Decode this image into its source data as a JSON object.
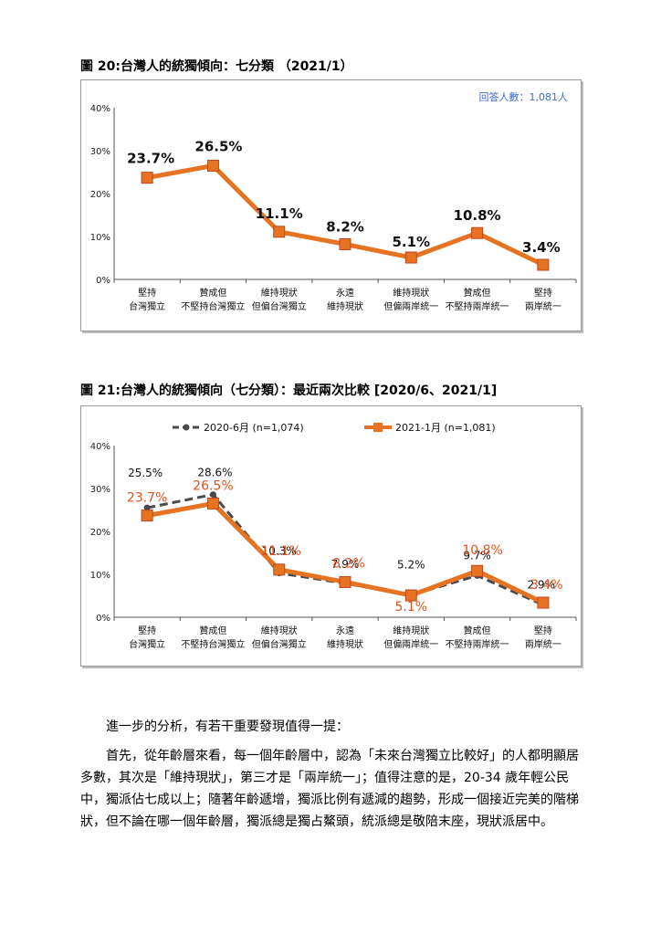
{
  "categories": [
    [
      "堅持",
      "台灣獨立"
    ],
    [
      "贊成但",
      "不堅持台灣獨立"
    ],
    [
      "維持現狀",
      "但偏台灣獨立"
    ],
    [
      "永遠",
      "維持現狀"
    ],
    [
      "維持現狀",
      "但偏兩岸統一"
    ],
    [
      "贊成但",
      "不堅持兩岸統一"
    ],
    [
      "堅持",
      "兩岸統一"
    ]
  ],
  "figure20": {
    "title": "圖 20:台灣人的統獨傾向：七分類 （2021/1）",
    "respondents": "回答人數：1,081人",
    "chart_data": {
      "type": "line",
      "y_ticks": [
        "0%",
        "10%",
        "20%",
        "30%",
        "40%"
      ],
      "ylim": [
        0,
        40
      ],
      "series": [
        {
          "values": [
            23.7,
            26.5,
            11.1,
            8.2,
            5.1,
            10.8,
            3.4
          ],
          "color": "#e57322",
          "labels": [
            "23.7%",
            "26.5%",
            "11.1%",
            "8.2%",
            "5.1%",
            "10.8%",
            "3.4%"
          ]
        }
      ]
    }
  },
  "figure21": {
    "title": "圖 21:台灣人的統獨傾向（七分類）：最近兩次比較 [2020/6、2021/1]",
    "chart_data": {
      "type": "line",
      "y_ticks": [
        "0%",
        "10%",
        "20%",
        "30%",
        "40%"
      ],
      "ylim": [
        0,
        40
      ],
      "series": [
        {
          "name": "2020-6月 (n=1,074)",
          "color": "#4a4a4a",
          "dashed": true,
          "values": [
            25.5,
            28.6,
            10.3,
            7.9,
            5.2,
            9.7,
            2.9
          ],
          "labels": [
            "25.5%",
            "28.6%",
            "10.3%",
            "7.9%",
            "5.2%",
            "9.7%",
            "2.9%"
          ]
        },
        {
          "name": "2021-1月 (n=1,081)",
          "color": "#e57322",
          "dashed": false,
          "values": [
            23.7,
            26.5,
            11.1,
            8.2,
            5.1,
            10.8,
            3.4
          ],
          "labels": [
            "23.7%",
            "26.5%",
            "11.1%",
            "8.2%",
            "5.1%",
            "10.8%",
            "3.4%"
          ]
        }
      ]
    }
  },
  "text": {
    "p1": "進一步的分析，有若干重要發現值得一提：",
    "p2": "首先，從年齡層來看，每一個年齡層中，認為「未來台灣獨立比較好」的人都明顯居多數，其次是「維持現狀」，第三才是「兩岸統一」；值得注意的是，20-34 歲年輕公民中，獨派佔七成以上；隨著年齡遞增，獨派比例有遞減的趨勢，形成一個接近完美的階梯狀，但不論在哪一個年齡層，獨派總是獨占鰲頭，統派總是敬陪末座，現狀派居中。"
  }
}
